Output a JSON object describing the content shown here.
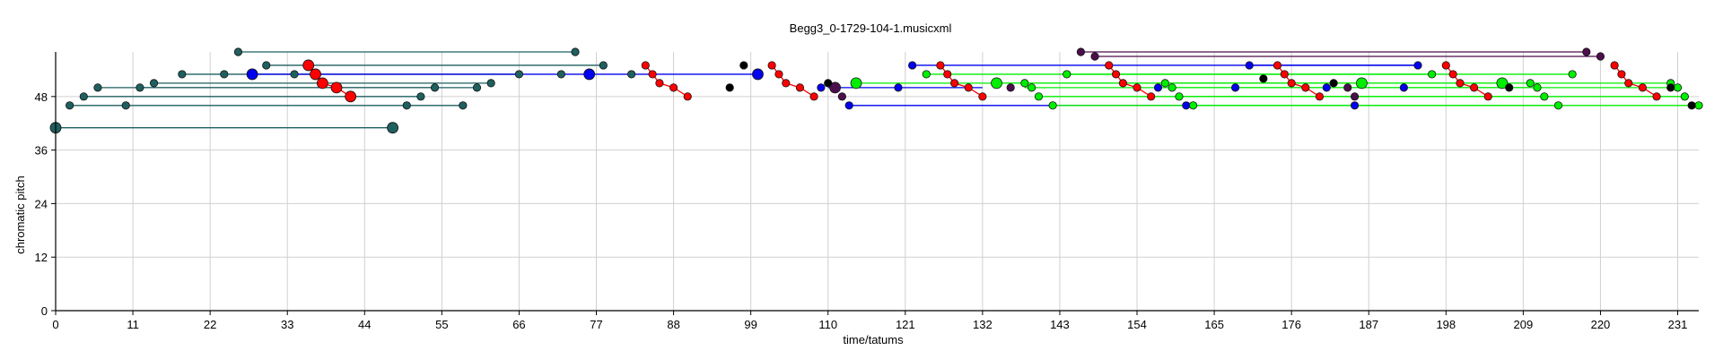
{
  "chart_data": {
    "type": "scatter",
    "title": "Begg3_0-1729-104-1.musicxml",
    "xlabel": "time/tatums",
    "ylabel": "chromatic pitch",
    "xlim": [
      0,
      234
    ],
    "ylim": [
      0,
      58
    ],
    "grid": true,
    "x_ticks": [
      0,
      11,
      22,
      33,
      44,
      55,
      66,
      77,
      88,
      99,
      110,
      121,
      132,
      143,
      154,
      165,
      176,
      187,
      198,
      209,
      220,
      231
    ],
    "y_ticks": [
      0,
      12,
      24,
      36,
      48
    ],
    "series": [
      {
        "color": "#1f5f5f",
        "segments": [
          {
            "x0": 0,
            "x1": 48,
            "y": 41
          },
          {
            "x0": 2,
            "x1": 58,
            "y": 46
          },
          {
            "x0": 4,
            "x1": 52,
            "y": 48
          },
          {
            "x0": 6,
            "x1": 54,
            "y": 50
          },
          {
            "x0": 12,
            "x1": 60,
            "y": 50
          },
          {
            "x0": 14,
            "x1": 62,
            "y": 51
          },
          {
            "x0": 18,
            "x1": 66,
            "y": 53
          },
          {
            "x0": 26,
            "x1": 74,
            "y": 58
          },
          {
            "x0": 30,
            "x1": 78,
            "y": 55
          }
        ],
        "points": [
          {
            "x": 0,
            "y": 41,
            "big": true
          },
          {
            "x": 48,
            "y": 41,
            "big": true
          },
          {
            "x": 2,
            "y": 46
          },
          {
            "x": 10,
            "y": 46
          },
          {
            "x": 50,
            "y": 46
          },
          {
            "x": 58,
            "y": 46
          },
          {
            "x": 4,
            "y": 48
          },
          {
            "x": 52,
            "y": 48
          },
          {
            "x": 6,
            "y": 50
          },
          {
            "x": 12,
            "y": 50
          },
          {
            "x": 54,
            "y": 50
          },
          {
            "x": 60,
            "y": 50
          },
          {
            "x": 14,
            "y": 51
          },
          {
            "x": 62,
            "y": 51
          },
          {
            "x": 18,
            "y": 53
          },
          {
            "x": 24,
            "y": 53
          },
          {
            "x": 34,
            "y": 53
          },
          {
            "x": 66,
            "y": 53
          },
          {
            "x": 72,
            "y": 53
          },
          {
            "x": 82,
            "y": 53
          },
          {
            "x": 26,
            "y": 58
          },
          {
            "x": 74,
            "y": 58
          },
          {
            "x": 30,
            "y": 55
          },
          {
            "x": 78,
            "y": 55
          }
        ]
      },
      {
        "color": "#0000ee",
        "segments": [
          {
            "x0": 28,
            "x1": 100,
            "y": 53
          },
          {
            "x0": 110,
            "x1": 132,
            "y": 50
          },
          {
            "x0": 113,
            "x1": 185,
            "y": 46
          },
          {
            "x0": 122,
            "x1": 194,
            "y": 55
          },
          {
            "x0": 170,
            "x1": 194,
            "y": 55
          }
        ],
        "points": [
          {
            "x": 28,
            "y": 53,
            "big": true
          },
          {
            "x": 76,
            "y": 53,
            "big": true
          },
          {
            "x": 100,
            "y": 53,
            "big": true
          },
          {
            "x": 109,
            "y": 50
          },
          {
            "x": 120,
            "y": 50
          },
          {
            "x": 113,
            "y": 46
          },
          {
            "x": 122,
            "y": 55
          },
          {
            "x": 170,
            "y": 55
          },
          {
            "x": 194,
            "y": 55
          },
          {
            "x": 157,
            "y": 50
          },
          {
            "x": 168,
            "y": 50
          },
          {
            "x": 161,
            "y": 46
          },
          {
            "x": 181,
            "y": 50
          },
          {
            "x": 185,
            "y": 46
          },
          {
            "x": 192,
            "y": 50
          }
        ]
      },
      {
        "color": "#ff0000",
        "segments": [],
        "lines": [
          [
            [
              36,
              55
            ],
            [
              37,
              53
            ],
            [
              38,
              51
            ],
            [
              40,
              50
            ],
            [
              42,
              48
            ]
          ],
          [
            [
              84,
              55
            ],
            [
              85,
              53
            ],
            [
              86,
              51
            ],
            [
              88,
              50
            ],
            [
              90,
              48
            ]
          ],
          [
            [
              102,
              55
            ],
            [
              103,
              53
            ],
            [
              104,
              51
            ],
            [
              106,
              50
            ],
            [
              108,
              48
            ]
          ],
          [
            [
              126,
              55
            ],
            [
              127,
              53
            ],
            [
              128,
              51
            ],
            [
              130,
              50
            ],
            [
              132,
              48
            ]
          ],
          [
            [
              150,
              55
            ],
            [
              151,
              53
            ],
            [
              152,
              51
            ],
            [
              154,
              50
            ],
            [
              156,
              48
            ]
          ],
          [
            [
              174,
              55
            ],
            [
              175,
              53
            ],
            [
              176,
              51
            ],
            [
              178,
              50
            ],
            [
              180,
              48
            ]
          ],
          [
            [
              198,
              55
            ],
            [
              199,
              53
            ],
            [
              200,
              51
            ],
            [
              202,
              50
            ],
            [
              204,
              48
            ]
          ],
          [
            [
              222,
              55
            ],
            [
              223,
              53
            ],
            [
              224,
              51
            ],
            [
              226,
              50
            ],
            [
              228,
              48
            ]
          ]
        ],
        "points": [
          {
            "x": 36,
            "y": 55,
            "big": true
          },
          {
            "x": 37,
            "y": 53,
            "big": true
          },
          {
            "x": 38,
            "y": 51,
            "big": true
          },
          {
            "x": 40,
            "y": 50,
            "big": true
          },
          {
            "x": 42,
            "y": 48,
            "big": true
          },
          {
            "x": 84,
            "y": 55
          },
          {
            "x": 85,
            "y": 53
          },
          {
            "x": 86,
            "y": 51
          },
          {
            "x": 88,
            "y": 50
          },
          {
            "x": 90,
            "y": 48
          },
          {
            "x": 102,
            "y": 55
          },
          {
            "x": 103,
            "y": 53
          },
          {
            "x": 104,
            "y": 51
          },
          {
            "x": 106,
            "y": 50
          },
          {
            "x": 108,
            "y": 48
          },
          {
            "x": 126,
            "y": 55
          },
          {
            "x": 127,
            "y": 53
          },
          {
            "x": 128,
            "y": 51
          },
          {
            "x": 130,
            "y": 50
          },
          {
            "x": 132,
            "y": 48
          },
          {
            "x": 150,
            "y": 55
          },
          {
            "x": 151,
            "y": 53
          },
          {
            "x": 152,
            "y": 51
          },
          {
            "x": 154,
            "y": 50
          },
          {
            "x": 156,
            "y": 48
          },
          {
            "x": 174,
            "y": 55
          },
          {
            "x": 175,
            "y": 53
          },
          {
            "x": 176,
            "y": 51
          },
          {
            "x": 178,
            "y": 50
          },
          {
            "x": 180,
            "y": 48
          },
          {
            "x": 198,
            "y": 55
          },
          {
            "x": 199,
            "y": 53
          },
          {
            "x": 200,
            "y": 51
          },
          {
            "x": 202,
            "y": 50
          },
          {
            "x": 204,
            "y": 48
          },
          {
            "x": 222,
            "y": 55
          },
          {
            "x": 223,
            "y": 53
          },
          {
            "x": 224,
            "y": 51
          },
          {
            "x": 226,
            "y": 50
          },
          {
            "x": 228,
            "y": 48
          }
        ]
      },
      {
        "color": "#00ee00",
        "segments": [
          {
            "x0": 114,
            "x1": 186,
            "y": 51
          },
          {
            "x0": 124,
            "x1": 196,
            "y": 53
          },
          {
            "x0": 134,
            "x1": 206,
            "y": 51
          },
          {
            "x0": 138,
            "x1": 210,
            "y": 50
          },
          {
            "x0": 140,
            "x1": 212,
            "y": 48
          },
          {
            "x0": 142,
            "x1": 214,
            "y": 46
          },
          {
            "x0": 144,
            "x1": 216,
            "y": 53
          },
          {
            "x0": 158,
            "x1": 230,
            "y": 51
          },
          {
            "x0": 159,
            "x1": 231,
            "y": 50
          },
          {
            "x0": 160,
            "x1": 232,
            "y": 48
          },
          {
            "x0": 162,
            "x1": 234,
            "y": 46
          }
        ],
        "points": [
          {
            "x": 114,
            "y": 51,
            "big": true
          },
          {
            "x": 186,
            "y": 51,
            "big": true
          },
          {
            "x": 124,
            "y": 53
          },
          {
            "x": 196,
            "y": 53
          },
          {
            "x": 134,
            "y": 51,
            "big": true
          },
          {
            "x": 206,
            "y": 51,
            "big": true
          },
          {
            "x": 138,
            "y": 51
          },
          {
            "x": 210,
            "y": 51
          },
          {
            "x": 139,
            "y": 50
          },
          {
            "x": 211,
            "y": 50
          },
          {
            "x": 140,
            "y": 48
          },
          {
            "x": 212,
            "y": 48
          },
          {
            "x": 142,
            "y": 46
          },
          {
            "x": 214,
            "y": 46
          },
          {
            "x": 144,
            "y": 53
          },
          {
            "x": 216,
            "y": 53
          },
          {
            "x": 158,
            "y": 51
          },
          {
            "x": 230,
            "y": 51
          },
          {
            "x": 159,
            "y": 50
          },
          {
            "x": 231,
            "y": 50
          },
          {
            "x": 160,
            "y": 48
          },
          {
            "x": 232,
            "y": 48
          },
          {
            "x": 162,
            "y": 46
          },
          {
            "x": 234,
            "y": 46
          }
        ]
      },
      {
        "color": "#4b0f4b",
        "segments": [
          {
            "x0": 146,
            "x1": 218,
            "y": 58
          },
          {
            "x0": 148,
            "x1": 220,
            "y": 57
          }
        ],
        "points": [
          {
            "x": 146,
            "y": 58
          },
          {
            "x": 218,
            "y": 58
          },
          {
            "x": 148,
            "y": 57
          },
          {
            "x": 220,
            "y": 57
          },
          {
            "x": 111,
            "y": 50,
            "big": true
          },
          {
            "x": 112,
            "y": 48
          },
          {
            "x": 136,
            "y": 50
          },
          {
            "x": 184,
            "y": 50
          },
          {
            "x": 185,
            "y": 48
          }
        ]
      },
      {
        "color": "#000000",
        "segments": [],
        "points": [
          {
            "x": 96,
            "y": 50
          },
          {
            "x": 98,
            "y": 55
          },
          {
            "x": 110,
            "y": 51
          },
          {
            "x": 172,
            "y": 52
          },
          {
            "x": 182,
            "y": 51
          },
          {
            "x": 207,
            "y": 50
          },
          {
            "x": 230,
            "y": 50
          },
          {
            "x": 233,
            "y": 46
          }
        ]
      }
    ]
  }
}
